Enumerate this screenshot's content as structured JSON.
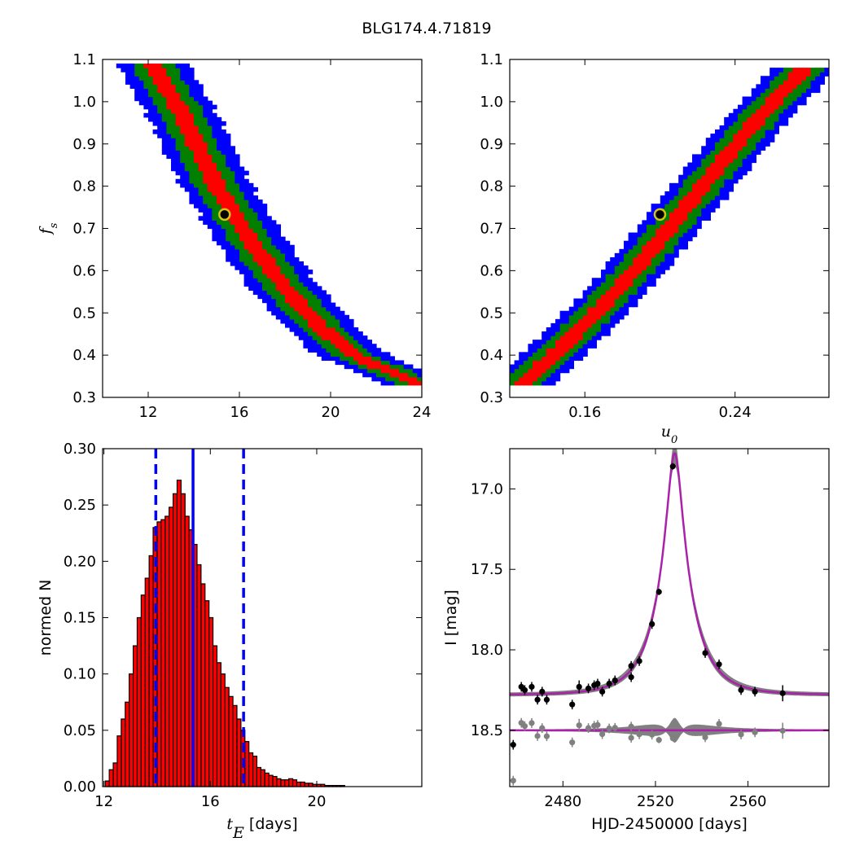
{
  "figure_title": "BLG174.4.71819",
  "chart_data": [
    {
      "id": "fs_vs_tE",
      "type": "heatmap",
      "title": "",
      "xlabel": "",
      "ylabel": "f_s",
      "xlim": [
        10,
        24
      ],
      "ylim": [
        0.3,
        1.1
      ],
      "xticks": [
        12,
        16,
        20,
        24
      ],
      "xtick_labels": [
        "12",
        "16",
        "20",
        "24"
      ],
      "yticks": [
        0.3,
        0.4,
        0.5,
        0.6,
        0.7,
        0.8,
        0.9,
        1.0,
        1.1
      ],
      "ytick_labels": [
        "0.3",
        "0.4",
        "0.5",
        "0.6",
        "0.7",
        "0.8",
        "0.9",
        "1.0",
        "1.1"
      ],
      "levels": [
        "3-sigma",
        "2-sigma",
        "1-sigma",
        "best"
      ],
      "level_colors": [
        "#0000ff",
        "#007f00",
        "#ff0000",
        "#000000"
      ],
      "ridge": {
        "x": [
          12.3,
          13.5,
          15,
          16.5,
          18,
          19.5,
          21,
          23.5
        ],
        "y": [
          1.08,
          0.97,
          0.8,
          0.67,
          0.56,
          0.47,
          0.4,
          0.34
        ]
      },
      "band_halfwidth_x": [
        0.4,
        0.95,
        1.55
      ],
      "best_fit": {
        "x": 15.35,
        "y": 0.733
      }
    },
    {
      "id": "fs_vs_u0",
      "type": "heatmap",
      "title": "",
      "xlabel": "u_0",
      "ylabel": "",
      "xlim": [
        0.12,
        0.29
      ],
      "ylim": [
        0.3,
        1.1
      ],
      "xticks": [
        0.16,
        0.24
      ],
      "xtick_labels": [
        "0.16",
        "0.24"
      ],
      "yticks": [
        0.3,
        0.4,
        0.5,
        0.6,
        0.7,
        0.8,
        0.9,
        1.0,
        1.1
      ],
      "ytick_labels": [
        "0.3",
        "0.4",
        "0.5",
        "0.6",
        "0.7",
        "0.8",
        "0.9",
        "1.0",
        "1.1"
      ],
      "levels": [
        "3-sigma",
        "2-sigma",
        "1-sigma",
        "best"
      ],
      "level_colors": [
        "#0000ff",
        "#007f00",
        "#ff0000",
        "#000000"
      ],
      "ridge": {
        "x": [
          0.128,
          0.15,
          0.17,
          0.19,
          0.21,
          0.23,
          0.25,
          0.275
        ],
        "y": [
          0.34,
          0.43,
          0.52,
          0.62,
          0.73,
          0.84,
          0.95,
          1.07
        ]
      },
      "band_halfwidth_x": [
        0.005,
        0.011,
        0.017
      ],
      "best_fit": {
        "x": 0.2,
        "y": 0.733
      }
    },
    {
      "id": "tE_histogram",
      "type": "bar",
      "title": "",
      "xlabel": "t_E [days]",
      "xlabel_var": "t_E",
      "xlabel_unit": " [days]",
      "ylabel": "normed N",
      "xlim": [
        11.95,
        23.95
      ],
      "ylim": [
        0.0,
        0.3
      ],
      "xticks": [
        12,
        16,
        20
      ],
      "xtick_labels": [
        "12",
        "16",
        "20"
      ],
      "yticks": [
        0.0,
        0.05,
        0.1,
        0.15,
        0.2,
        0.25,
        0.3
      ],
      "ytick_labels": [
        "0.00",
        "0.05",
        "0.10",
        "0.15",
        "0.20",
        "0.25",
        "0.30"
      ],
      "bin_start": 12.05,
      "bin_width": 0.15,
      "values": [
        0.005,
        0.015,
        0.021,
        0.045,
        0.06,
        0.075,
        0.1,
        0.125,
        0.15,
        0.17,
        0.185,
        0.205,
        0.23,
        0.235,
        0.237,
        0.24,
        0.248,
        0.26,
        0.272,
        0.26,
        0.24,
        0.228,
        0.215,
        0.197,
        0.18,
        0.165,
        0.15,
        0.125,
        0.11,
        0.1,
        0.088,
        0.08,
        0.072,
        0.06,
        0.05,
        0.04,
        0.03,
        0.027,
        0.017,
        0.015,
        0.012,
        0.01,
        0.009,
        0.007,
        0.006,
        0.006,
        0.007,
        0.006,
        0.004,
        0.004,
        0.003,
        0.003,
        0.002,
        0.002,
        0.002,
        0.001,
        0.001,
        0.001,
        0.001,
        0.001
      ],
      "vlines": [
        {
          "x": 15.35,
          "style": "solid",
          "color": "#0000ff"
        },
        {
          "x": 13.95,
          "style": "dashed",
          "color": "#0000ff"
        },
        {
          "x": 17.25,
          "style": "dashed",
          "color": "#0000ff"
        }
      ]
    },
    {
      "id": "light_curve",
      "type": "scatter",
      "title": "",
      "xlabel": "HJD-2450000 [days]",
      "ylabel": "I [mag]",
      "xlim": [
        2457,
        2595
      ],
      "ylim": [
        18.85,
        16.75
      ],
      "xticks": [
        2480,
        2520,
        2560
      ],
      "xtick_labels": [
        "2480",
        "2520",
        "2560"
      ],
      "yticks": [
        17.0,
        17.5,
        18.0,
        18.5
      ],
      "ytick_labels": [
        "17.0",
        "17.5",
        "18.0",
        "18.5"
      ],
      "model": {
        "t0": 2528.3,
        "tE": 15.35,
        "u0": 0.2,
        "fs": 0.733,
        "baseline_mag": 18.28,
        "color": "#aa22aa"
      },
      "residual_baseline": 18.5,
      "observations": [
        {
          "t": 2458.5,
          "mag": 18.59,
          "err": 0.03
        },
        {
          "t": 2462,
          "mag": 18.23,
          "err": 0.03
        },
        {
          "t": 2463.5,
          "mag": 18.25,
          "err": 0.03
        },
        {
          "t": 2466.5,
          "mag": 18.23,
          "err": 0.03
        },
        {
          "t": 2469,
          "mag": 18.31,
          "err": 0.03
        },
        {
          "t": 2471,
          "mag": 18.26,
          "err": 0.03
        },
        {
          "t": 2473,
          "mag": 18.31,
          "err": 0.03
        },
        {
          "t": 2484,
          "mag": 18.34,
          "err": 0.03
        },
        {
          "t": 2487,
          "mag": 18.23,
          "err": 0.04
        },
        {
          "t": 2491,
          "mag": 18.24,
          "err": 0.03
        },
        {
          "t": 2493.5,
          "mag": 18.22,
          "err": 0.03
        },
        {
          "t": 2495,
          "mag": 18.21,
          "err": 0.03
        },
        {
          "t": 2497,
          "mag": 18.26,
          "err": 0.03
        },
        {
          "t": 2500,
          "mag": 18.21,
          "err": 0.03
        },
        {
          "t": 2502.5,
          "mag": 18.19,
          "err": 0.03
        },
        {
          "t": 2509.5,
          "mag": 18.17,
          "err": 0.03
        },
        {
          "t": 2509.5,
          "mag": 18.1,
          "err": 0.03
        },
        {
          "t": 2513,
          "mag": 18.07,
          "err": 0.03
        },
        {
          "t": 2518.5,
          "mag": 17.84,
          "err": 0.03
        },
        {
          "t": 2521.5,
          "mag": 17.64,
          "err": 0.02
        },
        {
          "t": 2527.5,
          "mag": 16.86,
          "err": 0.02
        },
        {
          "t": 2541.5,
          "mag": 18.02,
          "err": 0.03
        },
        {
          "t": 2547.5,
          "mag": 18.09,
          "err": 0.03
        },
        {
          "t": 2557,
          "mag": 18.25,
          "err": 0.03
        },
        {
          "t": 2563,
          "mag": 18.26,
          "err": 0.03
        },
        {
          "t": 2575,
          "mag": 18.27,
          "err": 0.05
        }
      ]
    }
  ]
}
